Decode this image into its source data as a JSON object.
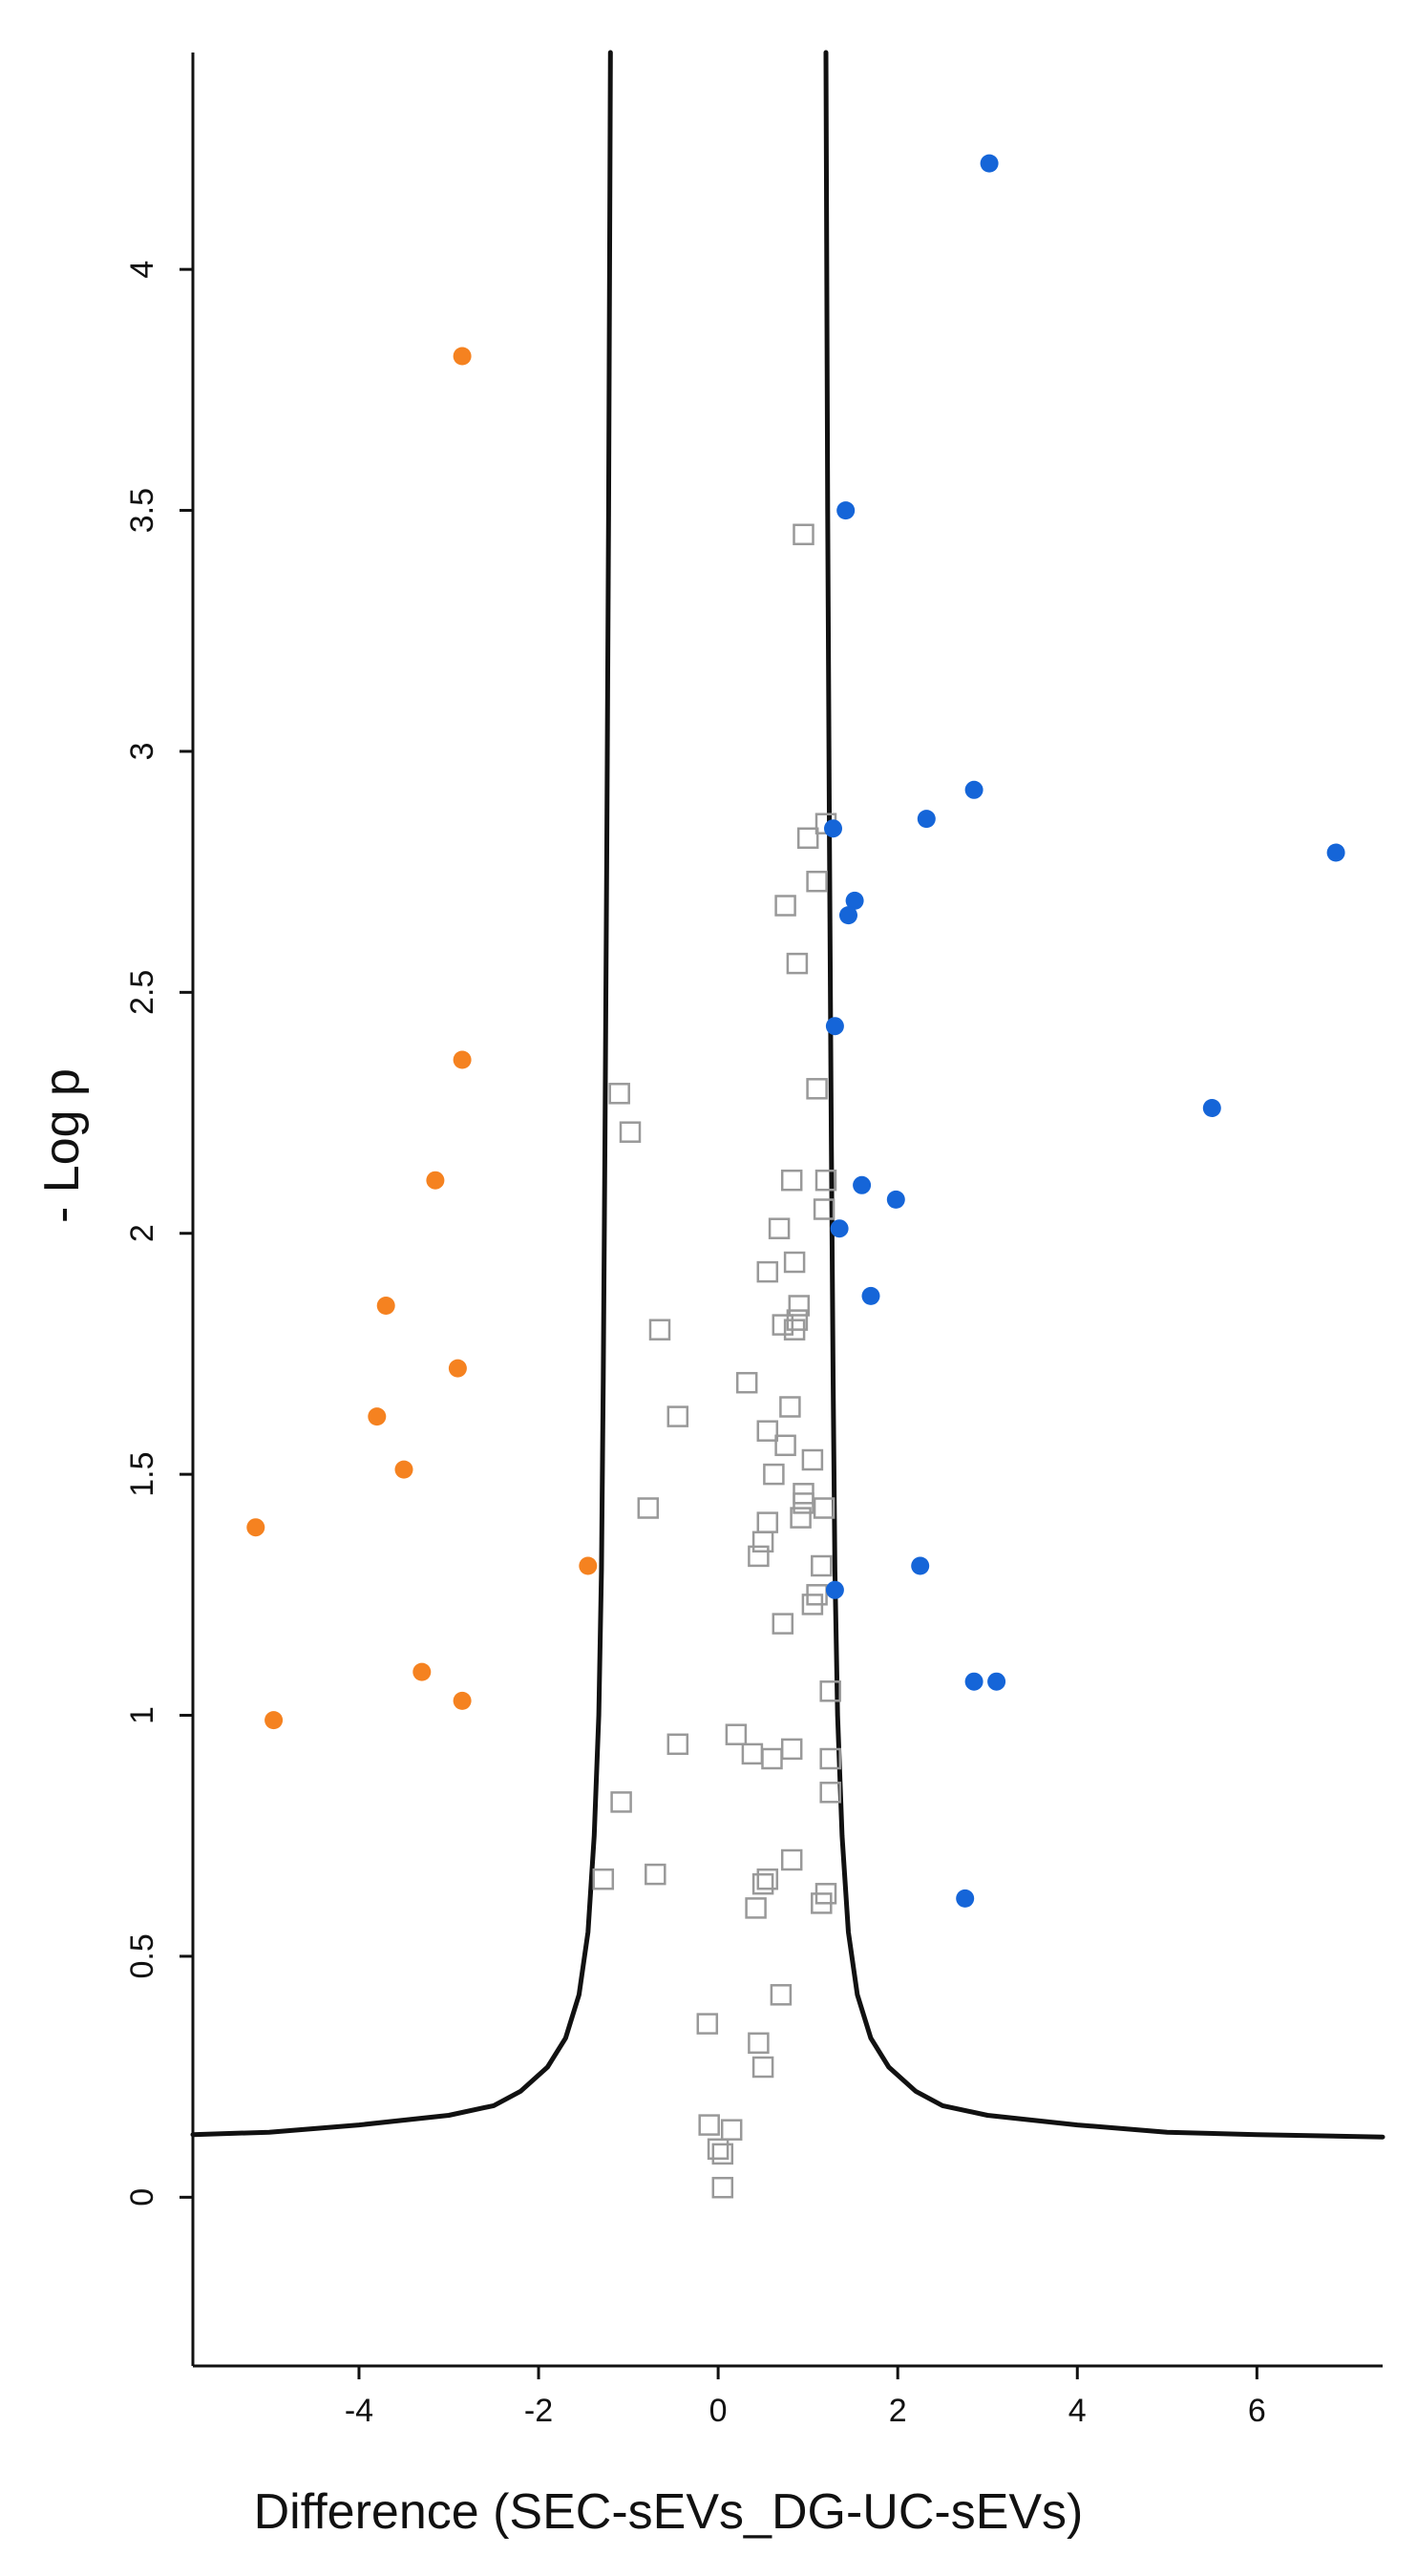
{
  "chart_data": {
    "type": "scatter",
    "title": "",
    "xlabel": "Difference (SEC-sEVs_DG-UC-sEVs)",
    "ylabel": "- Log p",
    "xlim": [
      -5.85,
      7.4
    ],
    "ylim": [
      -0.35,
      4.45
    ],
    "x_ticks": [
      -4,
      -2,
      0,
      2,
      4,
      6
    ],
    "y_ticks": [
      0,
      0.5,
      1,
      1.5,
      2,
      2.5,
      3,
      3.5,
      4
    ],
    "grid": false,
    "legend": "none",
    "colors": {
      "lower": "#f58220",
      "higher": "#1565d8",
      "non_significant": "#999999",
      "threshold": "#111111"
    },
    "series": [
      {
        "marker": "filled-circle",
        "color": "#f58220",
        "points": [
          {
            "x": -2.85,
            "y": 3.82
          },
          {
            "x": -2.85,
            "y": 2.36
          },
          {
            "x": -3.15,
            "y": 2.11
          },
          {
            "x": -3.7,
            "y": 1.85
          },
          {
            "x": -2.9,
            "y": 1.72
          },
          {
            "x": -3.8,
            "y": 1.62
          },
          {
            "x": -3.5,
            "y": 1.51
          },
          {
            "x": -5.15,
            "y": 1.39
          },
          {
            "x": -1.45,
            "y": 1.31
          },
          {
            "x": -3.3,
            "y": 1.09
          },
          {
            "x": -2.85,
            "y": 1.03
          },
          {
            "x": -4.95,
            "y": 0.99
          }
        ]
      },
      {
        "marker": "filled-circle",
        "color": "#1565d8",
        "points": [
          {
            "x": 3.02,
            "y": 4.22
          },
          {
            "x": 1.42,
            "y": 3.5
          },
          {
            "x": 2.85,
            "y": 2.92
          },
          {
            "x": 2.32,
            "y": 2.86
          },
          {
            "x": 1.28,
            "y": 2.84
          },
          {
            "x": 6.88,
            "y": 2.79
          },
          {
            "x": 1.52,
            "y": 2.69
          },
          {
            "x": 1.45,
            "y": 2.66
          },
          {
            "x": 1.3,
            "y": 2.43
          },
          {
            "x": 5.5,
            "y": 2.26
          },
          {
            "x": 1.6,
            "y": 2.1
          },
          {
            "x": 1.98,
            "y": 2.07
          },
          {
            "x": 1.35,
            "y": 2.01
          },
          {
            "x": 1.7,
            "y": 1.87
          },
          {
            "x": 2.25,
            "y": 1.31
          },
          {
            "x": 1.3,
            "y": 1.26
          },
          {
            "x": 2.85,
            "y": 1.07
          },
          {
            "x": 3.1,
            "y": 1.07
          },
          {
            "x": 2.75,
            "y": 0.62
          }
        ]
      },
      {
        "marker": "open-square",
        "color": "#999999",
        "points": [
          {
            "x": 0.95,
            "y": 3.45
          },
          {
            "x": 1.2,
            "y": 2.85
          },
          {
            "x": 1.0,
            "y": 2.82
          },
          {
            "x": 1.1,
            "y": 2.73
          },
          {
            "x": 0.75,
            "y": 2.68
          },
          {
            "x": 0.88,
            "y": 2.56
          },
          {
            "x": -1.1,
            "y": 2.29
          },
          {
            "x": -0.98,
            "y": 2.21
          },
          {
            "x": 1.1,
            "y": 2.3
          },
          {
            "x": 0.82,
            "y": 2.11
          },
          {
            "x": 1.2,
            "y": 2.11
          },
          {
            "x": 1.18,
            "y": 2.05
          },
          {
            "x": 0.68,
            "y": 2.01
          },
          {
            "x": 0.55,
            "y": 1.92
          },
          {
            "x": 0.85,
            "y": 1.94
          },
          {
            "x": 0.9,
            "y": 1.85
          },
          {
            "x": 0.88,
            "y": 1.82
          },
          {
            "x": 0.72,
            "y": 1.81
          },
          {
            "x": 0.85,
            "y": 1.8
          },
          {
            "x": -0.65,
            "y": 1.8
          },
          {
            "x": 0.32,
            "y": 1.69
          },
          {
            "x": 0.8,
            "y": 1.64
          },
          {
            "x": -0.45,
            "y": 1.62
          },
          {
            "x": 0.55,
            "y": 1.59
          },
          {
            "x": 0.75,
            "y": 1.56
          },
          {
            "x": 1.05,
            "y": 1.53
          },
          {
            "x": 0.62,
            "y": 1.5
          },
          {
            "x": 0.95,
            "y": 1.46
          },
          {
            "x": 0.95,
            "y": 1.44
          },
          {
            "x": 1.18,
            "y": 1.43
          },
          {
            "x": -0.78,
            "y": 1.43
          },
          {
            "x": 0.92,
            "y": 1.41
          },
          {
            "x": 0.55,
            "y": 1.4
          },
          {
            "x": 0.5,
            "y": 1.36
          },
          {
            "x": 0.45,
            "y": 1.33
          },
          {
            "x": 1.15,
            "y": 1.31
          },
          {
            "x": 1.1,
            "y": 1.25
          },
          {
            "x": 1.05,
            "y": 1.23
          },
          {
            "x": 0.72,
            "y": 1.19
          },
          {
            "x": 1.25,
            "y": 1.05
          },
          {
            "x": 0.2,
            "y": 0.96
          },
          {
            "x": -0.45,
            "y": 0.94
          },
          {
            "x": 0.82,
            "y": 0.93
          },
          {
            "x": 0.38,
            "y": 0.92
          },
          {
            "x": 0.6,
            "y": 0.91
          },
          {
            "x": 1.25,
            "y": 0.91
          },
          {
            "x": 1.25,
            "y": 0.84
          },
          {
            "x": -1.08,
            "y": 0.82
          },
          {
            "x": 0.82,
            "y": 0.7
          },
          {
            "x": -0.7,
            "y": 0.67
          },
          {
            "x": -1.28,
            "y": 0.66
          },
          {
            "x": 0.55,
            "y": 0.66
          },
          {
            "x": 0.5,
            "y": 0.65
          },
          {
            "x": 1.2,
            "y": 0.63
          },
          {
            "x": 1.15,
            "y": 0.61
          },
          {
            "x": 0.42,
            "y": 0.6
          },
          {
            "x": 0.7,
            "y": 0.42
          },
          {
            "x": -0.12,
            "y": 0.36
          },
          {
            "x": 0.45,
            "y": 0.32
          },
          {
            "x": 0.5,
            "y": 0.27
          },
          {
            "x": -0.1,
            "y": 0.15
          },
          {
            "x": 0.15,
            "y": 0.14
          },
          {
            "x": 0.0,
            "y": 0.1
          },
          {
            "x": 0.05,
            "y": 0.09
          },
          {
            "x": 0.05,
            "y": 0.02
          }
        ]
      }
    ],
    "threshold_curves": [
      {
        "points": [
          {
            "x": -5.85,
            "y": 0.13
          },
          {
            "x": -5.0,
            "y": 0.135
          },
          {
            "x": -4.0,
            "y": 0.15
          },
          {
            "x": -3.0,
            "y": 0.17
          },
          {
            "x": -2.5,
            "y": 0.19
          },
          {
            "x": -2.2,
            "y": 0.22
          },
          {
            "x": -1.9,
            "y": 0.27
          },
          {
            "x": -1.7,
            "y": 0.33
          },
          {
            "x": -1.55,
            "y": 0.42
          },
          {
            "x": -1.45,
            "y": 0.55
          },
          {
            "x": -1.38,
            "y": 0.75
          },
          {
            "x": -1.33,
            "y": 1.0
          },
          {
            "x": -1.3,
            "y": 1.3
          },
          {
            "x": -1.28,
            "y": 1.7
          },
          {
            "x": -1.26,
            "y": 2.2
          },
          {
            "x": -1.24,
            "y": 2.8
          },
          {
            "x": -1.22,
            "y": 3.5
          },
          {
            "x": -1.2,
            "y": 4.45
          }
        ]
      },
      {
        "points": [
          {
            "x": 1.2,
            "y": 4.45
          },
          {
            "x": 1.22,
            "y": 3.5
          },
          {
            "x": 1.24,
            "y": 2.8
          },
          {
            "x": 1.26,
            "y": 2.2
          },
          {
            "x": 1.28,
            "y": 1.7
          },
          {
            "x": 1.3,
            "y": 1.3
          },
          {
            "x": 1.33,
            "y": 1.0
          },
          {
            "x": 1.38,
            "y": 0.75
          },
          {
            "x": 1.45,
            "y": 0.55
          },
          {
            "x": 1.55,
            "y": 0.42
          },
          {
            "x": 1.7,
            "y": 0.33
          },
          {
            "x": 1.9,
            "y": 0.27
          },
          {
            "x": 2.2,
            "y": 0.22
          },
          {
            "x": 2.5,
            "y": 0.19
          },
          {
            "x": 3.0,
            "y": 0.17
          },
          {
            "x": 4.0,
            "y": 0.15
          },
          {
            "x": 5.0,
            "y": 0.135
          },
          {
            "x": 6.0,
            "y": 0.13
          },
          {
            "x": 7.4,
            "y": 0.125
          }
        ]
      }
    ]
  }
}
